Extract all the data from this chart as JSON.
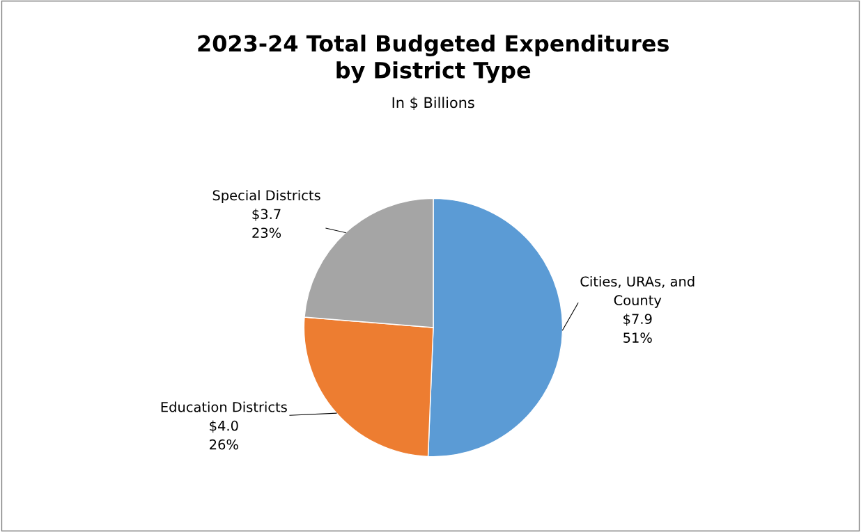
{
  "chart_data": {
    "type": "pie",
    "title": "2023-24 Total Budgeted Expenditures\nby District Type",
    "subtitle": "In $ Billions",
    "categories": [
      "Cities, URAs, and\nCounty",
      "Education Districts",
      "Special Districts"
    ],
    "values": [
      7.9,
      4.0,
      3.7
    ],
    "value_labels": [
      "$7.9\n51%",
      "$4.0\n26%",
      "$3.7\n23%"
    ],
    "colors": [
      "#5b9bd5",
      "#ed7d31",
      "#a5a5a5"
    ],
    "legend": false
  }
}
